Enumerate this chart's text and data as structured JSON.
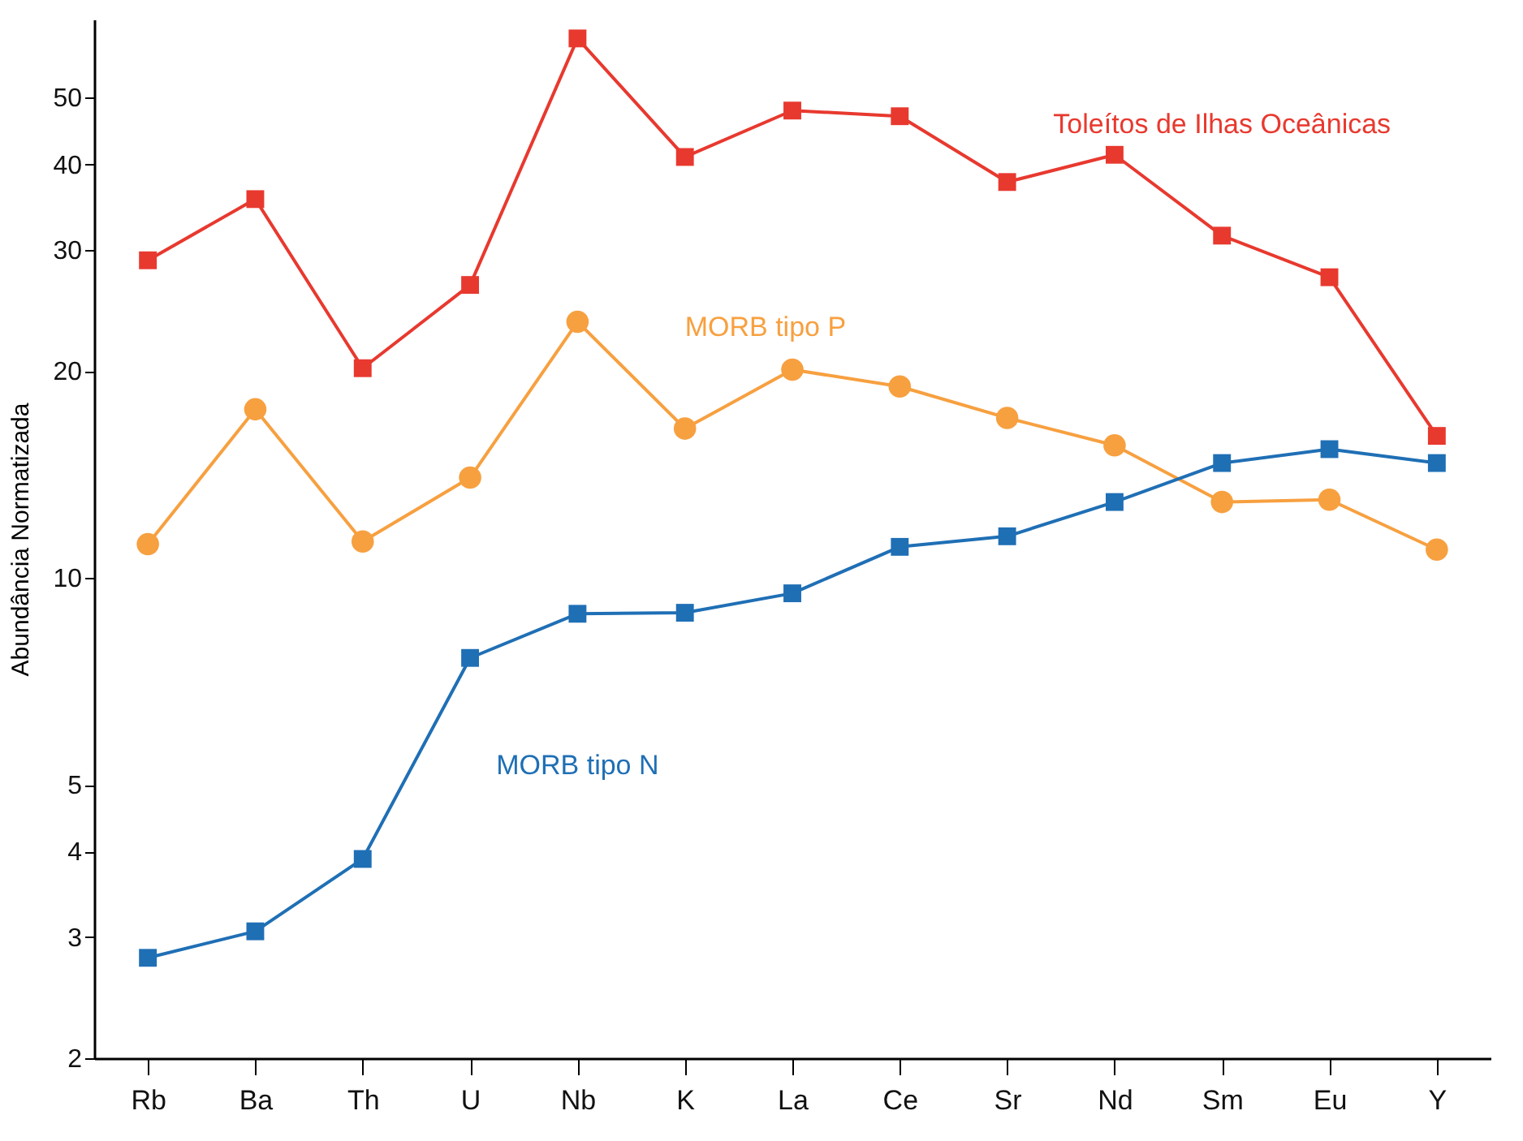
{
  "chart_data": {
    "type": "line",
    "ylabel": "Abundância Normatizada",
    "log": "y",
    "ylim": [
      2,
      65
    ],
    "yticks": [
      2,
      3,
      4,
      5,
      10,
      20,
      30,
      40,
      50
    ],
    "grid": false,
    "line_style": "solid",
    "categories": [
      "Rb",
      "Ba",
      "Th",
      "U",
      "Nb",
      "K",
      "La",
      "Ce",
      "Sr",
      "Nd",
      "Sm",
      "Eu",
      "Y"
    ],
    "series": [
      {
        "name": "Toleítos de Ilhas Oceânicas",
        "color": "#e8392f",
        "marker": "square",
        "values": [
          29,
          35.6,
          20.2,
          26.7,
          61,
          41,
          47.9,
          47,
          37.7,
          41.3,
          31.5,
          27.4,
          16.1
        ]
      },
      {
        "name": "MORB tipo P",
        "color": "#f7a040",
        "marker": "circle",
        "values": [
          11.2,
          17.6,
          11.3,
          14.0,
          23.6,
          16.5,
          20.1,
          19.0,
          17.1,
          15.6,
          12.9,
          13.0,
          11.0
        ]
      },
      {
        "name": "MORB tipo N",
        "color": "#1f6fb5",
        "marker": "square",
        "values": [
          2.8,
          3.06,
          3.9,
          7.65,
          8.87,
          8.9,
          9.5,
          11.1,
          11.5,
          12.9,
          14.7,
          15.4,
          14.7
        ]
      }
    ]
  }
}
